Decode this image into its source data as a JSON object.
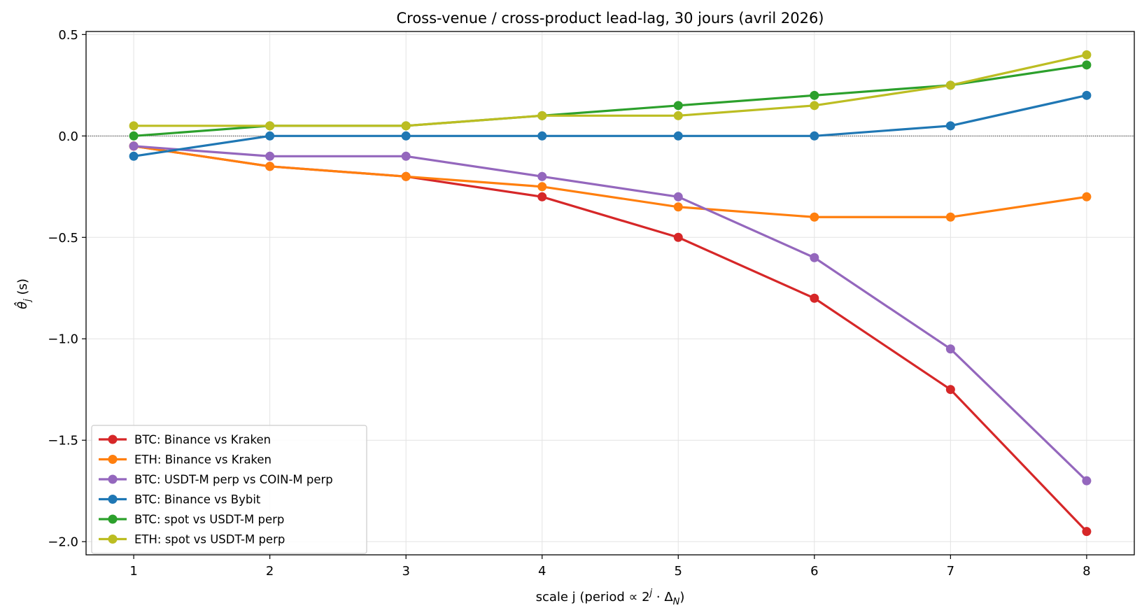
{
  "chart_data": {
    "type": "line",
    "title": "Cross-venue / cross-product lead-lag, 30 jours (avril 2026)",
    "xlabel": "scale j (period ∝ 2ʲ · Δ_N)",
    "xlabel_parts": {
      "pre": "scale j (period ",
      "prop": "∝ 2",
      "sup": "j",
      "mid": " · Δ",
      "sub": "N",
      "post": ")"
    },
    "ylabel": "θ̂_j (s)",
    "ylabel_parts": {
      "theta": "θ̂",
      "sub": "j",
      "post": " (s)"
    },
    "x": [
      1,
      2,
      3,
      4,
      5,
      6,
      7,
      8
    ],
    "xlim": [
      0.65,
      8.35
    ],
    "ylim": [
      -2.065,
      0.515
    ],
    "x_ticks": [
      1,
      2,
      3,
      4,
      5,
      6,
      7,
      8
    ],
    "y_ticks": [
      0.5,
      0.0,
      -0.5,
      -1.0,
      -1.5,
      -2.0
    ],
    "y_tick_labels": [
      "0.5",
      "0.0",
      "−0.5",
      "−1.0",
      "−1.5",
      "−2.0"
    ],
    "grid": true,
    "zero_line": true,
    "legend_position": "lower-left",
    "series": [
      {
        "name": "BTC: Binance vs Kraken",
        "color": "#d62728",
        "values": [
          -0.05,
          -0.15,
          -0.2,
          -0.3,
          -0.5,
          -0.8,
          -1.25,
          -1.95
        ]
      },
      {
        "name": "ETH: Binance vs Kraken",
        "color": "#ff7f0e",
        "values": [
          -0.05,
          -0.15,
          -0.2,
          -0.25,
          -0.35,
          -0.4,
          -0.4,
          -0.3
        ]
      },
      {
        "name": "BTC: USDT-M perp vs COIN-M perp",
        "color": "#9467bd",
        "values": [
          -0.05,
          -0.1,
          -0.1,
          -0.2,
          -0.3,
          -0.6,
          -1.05,
          -1.7
        ]
      },
      {
        "name": "BTC: Binance vs Bybit",
        "color": "#1f77b4",
        "values": [
          -0.1,
          0.0,
          0.0,
          0.0,
          0.0,
          0.0,
          0.05,
          0.2
        ]
      },
      {
        "name": "BTC: spot vs USDT-M perp",
        "color": "#2ca02c",
        "values": [
          0.0,
          0.05,
          0.05,
          0.1,
          0.15,
          0.2,
          0.25,
          0.35
        ]
      },
      {
        "name": "ETH: spot vs USDT-M perp",
        "color": "#bcbd22",
        "values": [
          0.05,
          0.05,
          0.05,
          0.1,
          0.1,
          0.15,
          0.25,
          0.4
        ]
      }
    ]
  }
}
